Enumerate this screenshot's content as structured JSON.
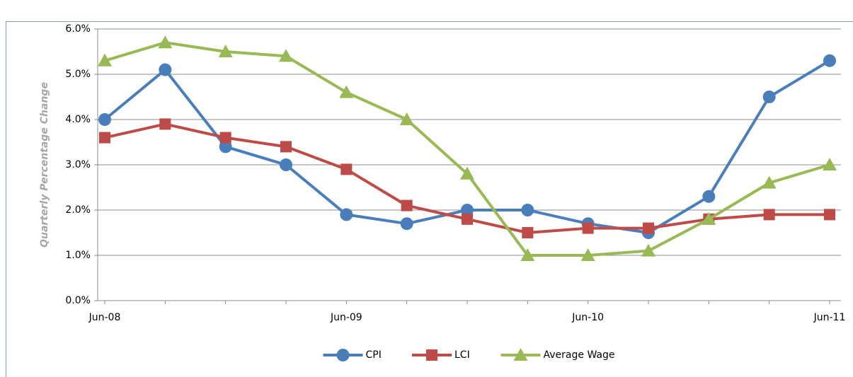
{
  "chart_data": {
    "type": "line",
    "y_label": "Quarterly Percentage Change",
    "categories": [
      "Jun-08",
      null,
      null,
      null,
      "Jun-09",
      null,
      null,
      null,
      "Jun-10",
      null,
      null,
      null,
      "Jun-11"
    ],
    "series": [
      {
        "name": "CPI",
        "color": "#4a7ebb",
        "marker": "circle",
        "values": [
          4.0,
          5.1,
          3.4,
          3.0,
          1.9,
          1.7,
          2.0,
          2.0,
          1.7,
          1.5,
          2.3,
          4.5,
          5.3
        ]
      },
      {
        "name": "LCI",
        "color": "#be4b48",
        "marker": "square",
        "values": [
          3.6,
          3.9,
          3.6,
          3.4,
          2.9,
          2.1,
          1.8,
          1.5,
          1.6,
          1.6,
          1.8,
          1.9,
          1.9
        ]
      },
      {
        "name": "Average Wage",
        "color": "#98b954",
        "marker": "triangle",
        "values": [
          5.3,
          5.7,
          5.5,
          5.4,
          4.6,
          4.0,
          2.8,
          1.0,
          1.0,
          1.1,
          1.8,
          2.6,
          3.0
        ]
      }
    ],
    "ylim": [
      0,
      6
    ],
    "yticks": [
      {
        "value": 0,
        "label": "0.0%"
      },
      {
        "value": 1,
        "label": "1.0%"
      },
      {
        "value": 2,
        "label": "2.0%"
      },
      {
        "value": 3,
        "label": "3.0%"
      },
      {
        "value": 4,
        "label": "4.0%"
      },
      {
        "value": 5,
        "label": "5.0%"
      },
      {
        "value": 6,
        "label": "6.0%"
      }
    ],
    "grid": true,
    "legend": "bottom"
  }
}
